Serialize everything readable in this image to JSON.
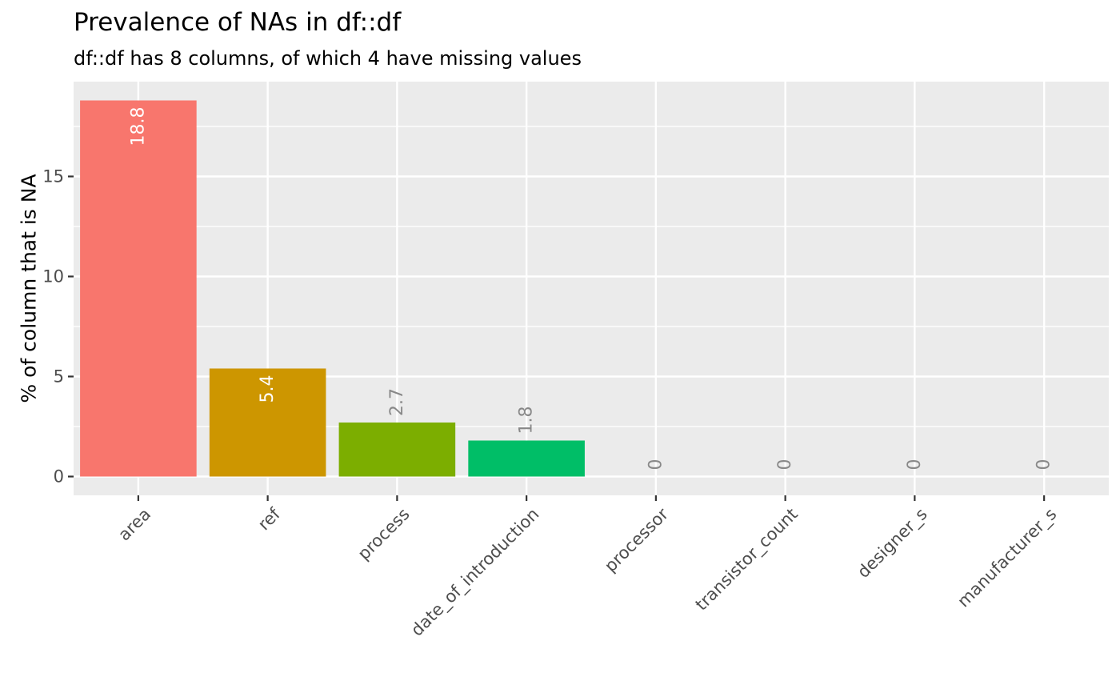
{
  "title": "Prevalence of NAs in df::df",
  "subtitle": "df::df has 8 columns, of which 4 have missing values",
  "chart_data": {
    "type": "bar",
    "title": "Prevalence of NAs in df::df",
    "subtitle": "df::df has 8 columns, of which 4 have missing values",
    "xlabel": "",
    "ylabel": "% of column that is NA",
    "categories": [
      "area",
      "ref",
      "process",
      "date_of_introduction",
      "processor",
      "transistor_count",
      "designer_s",
      "manufacturer_s"
    ],
    "values": [
      18.8,
      5.4,
      2.7,
      1.8,
      0,
      0,
      0,
      0
    ],
    "labels": [
      "18.8",
      "5.4",
      "2.7",
      "1.8",
      "0",
      "0",
      "0",
      "0"
    ],
    "colors": [
      "#F8766D",
      "#CD9600",
      "#7CAE00",
      "#00BE67",
      "#00BFC4",
      "#00A9FF",
      "#C77CFF",
      "#FF61CC"
    ],
    "ylim": [
      -0.94,
      19.74
    ],
    "yticks": [
      0,
      5,
      10,
      15
    ],
    "ytick_labels": [
      "0",
      "5",
      "10",
      "15"
    ],
    "grid": true,
    "legend": "none",
    "panel_background": "#EBEBEB",
    "grid_color": "#FFFFFF",
    "label_inside_color": "#FFFFFF",
    "label_outside_color": "#888888"
  }
}
